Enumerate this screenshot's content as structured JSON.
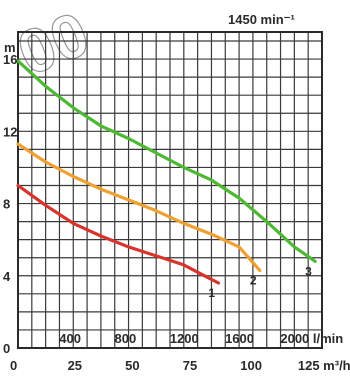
{
  "chart_data": {
    "type": "line",
    "speed_label": "1450 min⁻¹",
    "y_unit": "m",
    "y_ticks": [
      "16",
      "12",
      "8",
      "4",
      "0"
    ],
    "x_ticks_lmin": [
      "400",
      "800",
      "1200",
      "1600",
      "2000 l/min"
    ],
    "x_ticks_m3h": [
      "0",
      "25",
      "50",
      "75",
      "100",
      "125 m³/h"
    ],
    "xlim_lmin": [
      0,
      2200
    ],
    "ylim": [
      0,
      17.5
    ],
    "grid": true,
    "series": [
      {
        "name": "1",
        "color": "#d9342b",
        "x": [
          0,
          200,
          400,
          600,
          800,
          1000,
          1200,
          1350,
          1450
        ],
        "y": [
          9.0,
          7.9,
          6.9,
          6.2,
          5.6,
          5.1,
          4.6,
          4.0,
          3.6
        ]
      },
      {
        "name": "2",
        "color": "#f0a030",
        "x": [
          0,
          200,
          400,
          600,
          800,
          1000,
          1200,
          1400,
          1600,
          1750
        ],
        "y": [
          11.3,
          10.3,
          9.5,
          8.8,
          8.2,
          7.6,
          6.9,
          6.3,
          5.6,
          4.3
        ]
      },
      {
        "name": "3",
        "color": "#4db832",
        "x": [
          0,
          200,
          400,
          600,
          800,
          1000,
          1200,
          1400,
          1600,
          1800,
          2000,
          2150
        ],
        "y": [
          15.9,
          14.5,
          13.3,
          12.3,
          11.6,
          10.8,
          10.0,
          9.3,
          8.3,
          7.0,
          5.6,
          4.8
        ]
      }
    ]
  },
  "watermark": "00"
}
